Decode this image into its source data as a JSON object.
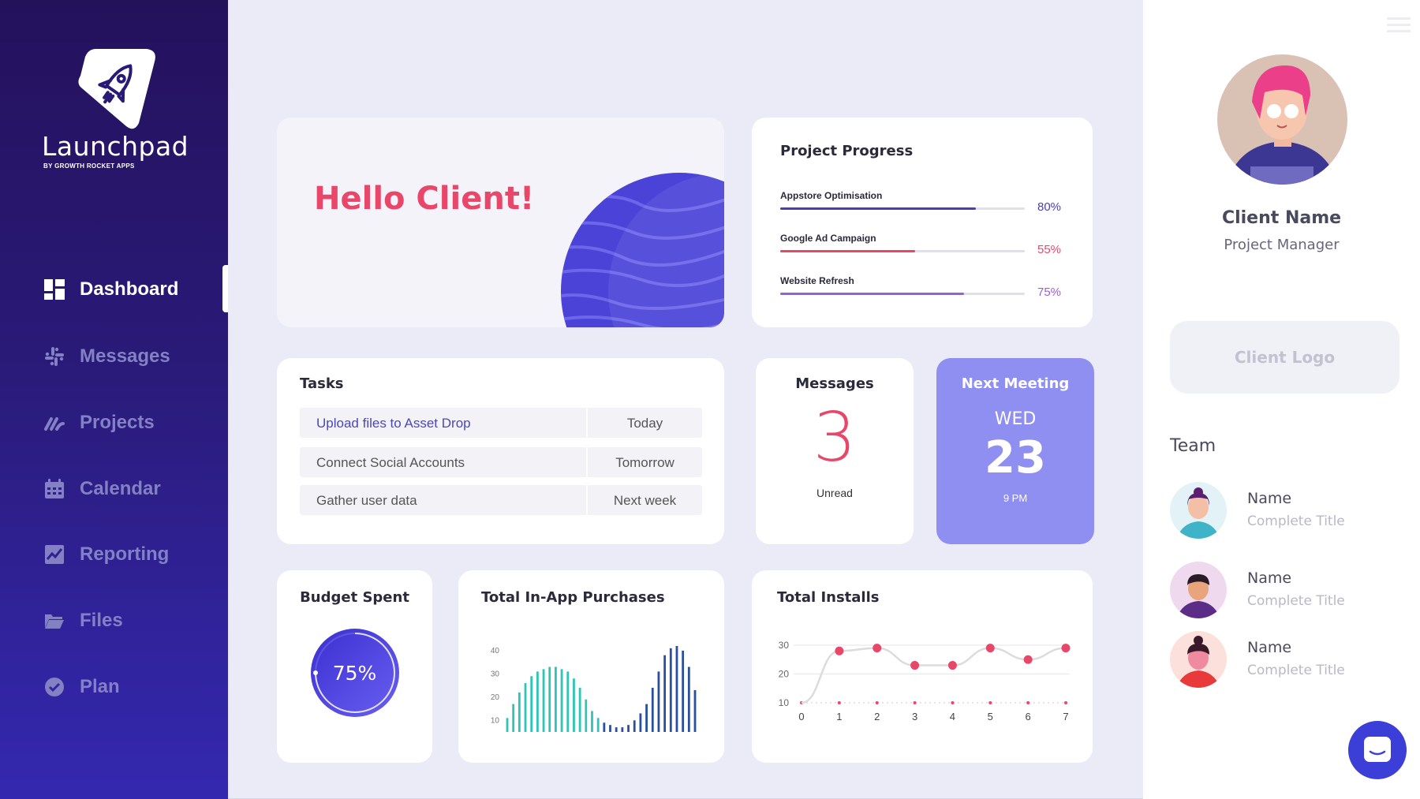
{
  "brand": {
    "name": "Launchpad",
    "sub": "BY GROWTH ROCKET APPS"
  },
  "nav": {
    "items": [
      {
        "label": "Dashboard",
        "icon": "dashboard-icon",
        "active": true
      },
      {
        "label": "Messages",
        "icon": "slack-icon",
        "active": false
      },
      {
        "label": "Projects",
        "icon": "projects-icon",
        "active": false
      },
      {
        "label": "Calendar",
        "icon": "calendar-icon",
        "active": false
      },
      {
        "label": "Reporting",
        "icon": "chart-icon",
        "active": false
      },
      {
        "label": "Files",
        "icon": "folder-icon",
        "active": false
      },
      {
        "label": "Plan",
        "icon": "check-circle-icon",
        "active": false
      }
    ]
  },
  "hello": {
    "title": "Hello Client!"
  },
  "progress": {
    "title": "Project Progress",
    "items": [
      {
        "label": "Appstore Optimisation",
        "value": "80%",
        "fraction": 0.8,
        "color": "#4a3fb0"
      },
      {
        "label": "Google Ad Campaign",
        "value": "55%",
        "fraction": 0.55,
        "color": "#e8476a"
      },
      {
        "label": "Website Refresh",
        "value": "75%",
        "fraction": 0.75,
        "color": "#9a5fd6"
      }
    ]
  },
  "tasks": {
    "title": "Tasks",
    "rows": [
      {
        "name": "Upload files to Asset Drop",
        "when": "Today",
        "highlight": true
      },
      {
        "name": "Connect Social Accounts",
        "when": "Tomorrow",
        "highlight": false
      },
      {
        "name": "Gather user data",
        "when": "Next week",
        "highlight": false
      }
    ]
  },
  "messages": {
    "title": "Messages",
    "count": "3",
    "caption": "Unread"
  },
  "meeting": {
    "title": "Next Meeting",
    "day": "WED",
    "date": "23",
    "time": "9 PM"
  },
  "budget": {
    "title": "Budget Spent",
    "value": "75%",
    "fraction": 0.75
  },
  "iap": {
    "title": "Total In-App Purchases"
  },
  "installs": {
    "title": "Total Installs"
  },
  "profile": {
    "name": "Client Name",
    "role": "Project Manager",
    "logo_placeholder": "Client Logo"
  },
  "team": {
    "title": "Team",
    "members": [
      {
        "name": "Name",
        "title": "Complete Title"
      },
      {
        "name": "Name",
        "title": "Complete Title"
      },
      {
        "name": "Name",
        "title": "Complete Title"
      }
    ]
  },
  "chart_data": [
    {
      "type": "bar",
      "title": "Total In-App Purchases",
      "ylim": [
        5,
        43
      ],
      "yticks": [
        10,
        20,
        30,
        40
      ],
      "values": [
        11,
        17,
        22,
        26,
        29,
        31,
        32,
        33,
        33,
        32,
        31,
        28,
        24,
        19,
        14,
        11,
        9,
        8,
        7,
        7,
        8,
        10,
        13,
        17,
        24,
        31,
        38,
        41,
        42,
        40,
        33,
        23
      ],
      "colors": [
        "#2ec4b6",
        "#2a4fa0"
      ],
      "grid": false
    },
    {
      "type": "line",
      "title": "Total Installs",
      "x": [
        0,
        1,
        2,
        3,
        4,
        5,
        6,
        7
      ],
      "ylim": [
        10,
        30
      ],
      "yticks": [
        10,
        20,
        30
      ],
      "series": [
        {
          "values": [
            10,
            28,
            29,
            23,
            23,
            29,
            25,
            29
          ],
          "color": "#e8476a",
          "line_color": "#dcdcdc"
        },
        {
          "values": [
            10,
            10,
            10,
            10,
            10,
            10,
            10,
            10
          ],
          "color": "#e8476a",
          "style": "dotted"
        }
      ],
      "grid": true
    }
  ]
}
